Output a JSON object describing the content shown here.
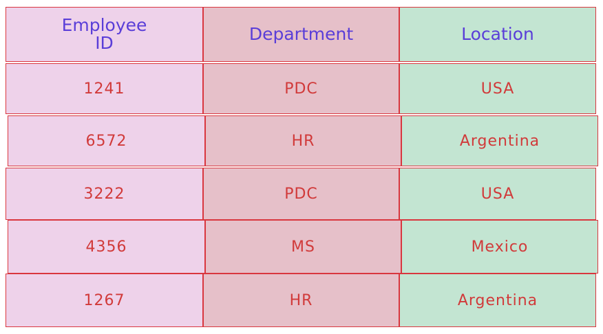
{
  "table": {
    "header": [
      "Employee ID",
      "Department",
      "Location"
    ],
    "rows": [
      [
        "1241",
        "PDC",
        "USA"
      ],
      [
        "6572",
        "HR",
        "Argentina"
      ],
      [
        "3222",
        "PDC",
        "USA"
      ],
      [
        "4356",
        "MS",
        "Mexico"
      ],
      [
        "1267",
        "HR",
        "Argentina"
      ]
    ]
  }
}
